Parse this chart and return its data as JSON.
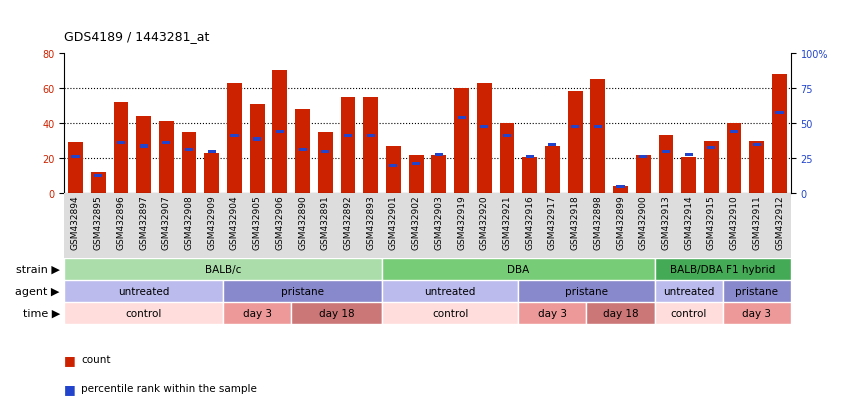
{
  "title": "GDS4189 / 1443281_at",
  "samples": [
    "GSM432894",
    "GSM432895",
    "GSM432896",
    "GSM432897",
    "GSM432907",
    "GSM432908",
    "GSM432909",
    "GSM432904",
    "GSM432905",
    "GSM432906",
    "GSM432890",
    "GSM432891",
    "GSM432892",
    "GSM432893",
    "GSM432901",
    "GSM432902",
    "GSM432903",
    "GSM432919",
    "GSM432920",
    "GSM432921",
    "GSM432916",
    "GSM432917",
    "GSM432918",
    "GSM432898",
    "GSM432899",
    "GSM432900",
    "GSM432913",
    "GSM432914",
    "GSM432915",
    "GSM432910",
    "GSM432911",
    "GSM432912"
  ],
  "count_values": [
    29,
    12,
    52,
    44,
    41,
    35,
    23,
    63,
    51,
    70,
    48,
    35,
    55,
    55,
    27,
    22,
    22,
    60,
    63,
    40,
    21,
    27,
    58,
    65,
    4,
    22,
    33,
    21,
    30,
    40,
    30,
    68
  ],
  "percentile_values": [
    21,
    10,
    29,
    27,
    29,
    25,
    24,
    33,
    31,
    35,
    25,
    24,
    33,
    33,
    16,
    17,
    22,
    43,
    38,
    33,
    21,
    28,
    38,
    38,
    4,
    21,
    24,
    22,
    26,
    35,
    28,
    46
  ],
  "bar_color": "#cc2200",
  "percentile_color": "#2244cc",
  "ylim_left": [
    0,
    80
  ],
  "ylim_right": [
    0,
    100
  ],
  "yticks_left": [
    0,
    20,
    40,
    60,
    80
  ],
  "yticks_right": [
    0,
    25,
    50,
    75,
    100
  ],
  "ytick_labels_right": [
    "0",
    "25",
    "50",
    "75",
    "100%"
  ],
  "strain_groups": [
    {
      "label": "BALB/c",
      "start": 0,
      "end": 14,
      "color": "#aaddaa"
    },
    {
      "label": "DBA",
      "start": 14,
      "end": 26,
      "color": "#77cc77"
    },
    {
      "label": "BALB/DBA F1 hybrid",
      "start": 26,
      "end": 32,
      "color": "#44aa55"
    }
  ],
  "agent_groups": [
    {
      "label": "untreated",
      "start": 0,
      "end": 7,
      "color": "#bbbbee"
    },
    {
      "label": "pristane",
      "start": 7,
      "end": 14,
      "color": "#8888cc"
    },
    {
      "label": "untreated",
      "start": 14,
      "end": 20,
      "color": "#bbbbee"
    },
    {
      "label": "pristane",
      "start": 20,
      "end": 26,
      "color": "#8888cc"
    },
    {
      "label": "untreated",
      "start": 26,
      "end": 29,
      "color": "#bbbbee"
    },
    {
      "label": "pristane",
      "start": 29,
      "end": 32,
      "color": "#8888cc"
    }
  ],
  "time_groups": [
    {
      "label": "control",
      "start": 0,
      "end": 7,
      "color": "#ffdddd"
    },
    {
      "label": "day 3",
      "start": 7,
      "end": 10,
      "color": "#ee9999"
    },
    {
      "label": "day 18",
      "start": 10,
      "end": 14,
      "color": "#cc7777"
    },
    {
      "label": "control",
      "start": 14,
      "end": 20,
      "color": "#ffdddd"
    },
    {
      "label": "day 3",
      "start": 20,
      "end": 23,
      "color": "#ee9999"
    },
    {
      "label": "day 18",
      "start": 23,
      "end": 26,
      "color": "#cc7777"
    },
    {
      "label": "control",
      "start": 26,
      "end": 29,
      "color": "#ffdddd"
    },
    {
      "label": "day 3",
      "start": 29,
      "end": 32,
      "color": "#ee9999"
    }
  ],
  "bg_color": "#ffffff",
  "grid_color": "#000000",
  "label_fontsize": 7.5,
  "tick_fontsize": 7,
  "row_label_fontsize": 8,
  "xtick_bg_color": "#dddddd"
}
